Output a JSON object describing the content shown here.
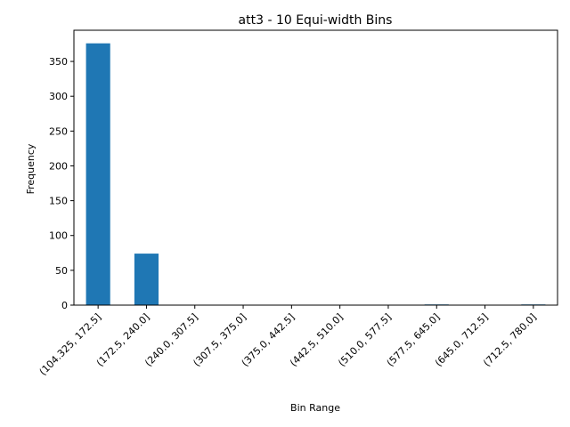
{
  "chart_data": {
    "type": "bar",
    "title": "att3 - 10 Equi-width Bins",
    "xlabel": "Bin Range",
    "ylabel": "Frequency",
    "categories": [
      "(104.325, 172.5]",
      "(172.5, 240.0]",
      "(240.0, 307.5]",
      "(307.5, 375.0]",
      "(375.0, 442.5]",
      "(442.5, 510.0]",
      "(510.0, 577.5]",
      "(577.5, 645.0]",
      "(645.0, 712.5]",
      "(712.5, 780.0]"
    ],
    "values": [
      376,
      74,
      0,
      0,
      0,
      0,
      0,
      1,
      0,
      1
    ],
    "ylim": [
      0,
      394.8
    ],
    "yticks": [
      0,
      50,
      100,
      150,
      200,
      250,
      300,
      350
    ],
    "grid": false,
    "bar_color": "#1f77b4"
  }
}
